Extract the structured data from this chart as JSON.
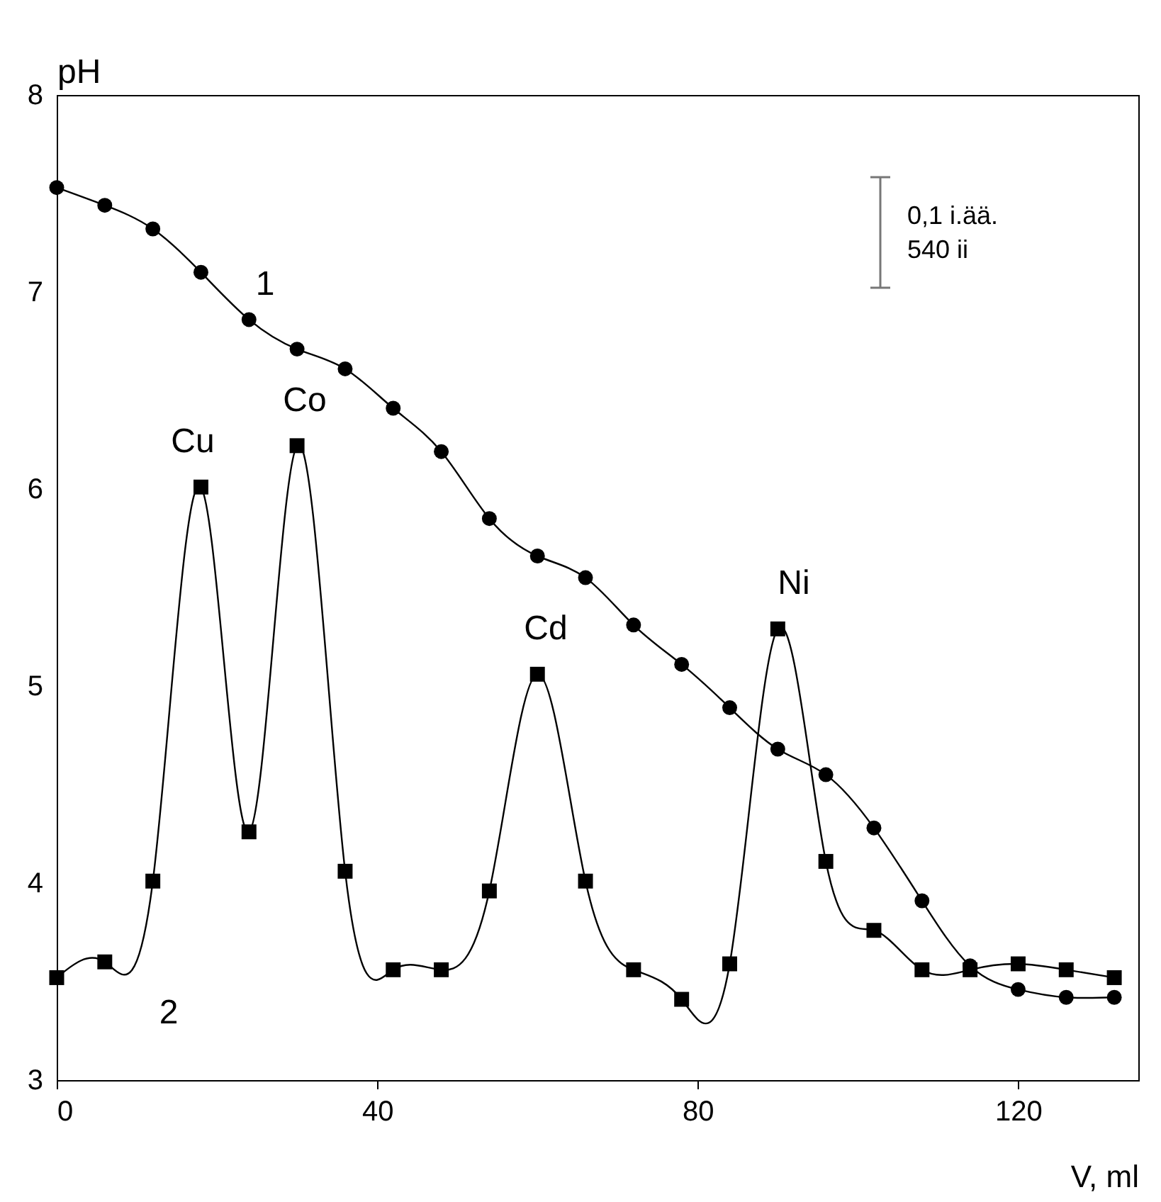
{
  "chart_data": {
    "type": "line",
    "xlabel": "V, ml",
    "ylabel": "pH",
    "x": [
      0,
      6,
      12,
      18,
      24,
      30,
      36,
      42,
      48,
      54,
      60,
      66,
      72,
      78,
      84,
      90,
      96,
      102,
      108,
      114,
      120,
      126,
      132
    ],
    "series": [
      {
        "color": "#000000",
        "marker": "circle",
        "values": [
          7.53,
          7.44,
          7.32,
          7.1,
          6.86,
          6.71,
          6.61,
          6.41,
          6.19,
          5.85,
          5.66,
          5.55,
          5.31,
          5.11,
          4.89,
          4.68,
          4.55,
          4.28,
          3.91,
          3.58,
          3.46,
          3.42,
          3.42
        ]
      },
      {
        "color": "#000000",
        "marker": "square",
        "values": [
          3.52,
          3.6,
          4.01,
          6.01,
          4.26,
          6.22,
          4.06,
          3.56,
          3.56,
          3.96,
          5.06,
          4.01,
          3.56,
          3.41,
          3.59,
          5.29,
          4.11,
          3.76,
          3.56,
          3.56,
          3.59,
          3.56,
          3.52
        ]
      }
    ],
    "xlim": [
      0,
      135
    ],
    "xticks": [
      0,
      40,
      80,
      120
    ],
    "ylim": [
      3,
      8
    ],
    "yticks": [
      3,
      4,
      5,
      6,
      7,
      8
    ],
    "grid": false,
    "annotations": [
      "Cu",
      "Co",
      "Cd",
      "Ni",
      "1",
      "2",
      "0,1 i.ää.",
      "540 ii"
    ]
  }
}
